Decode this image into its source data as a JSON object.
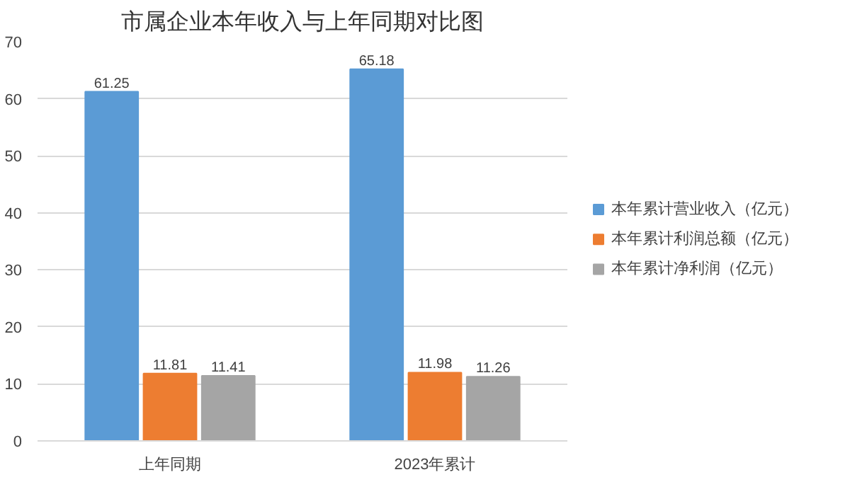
{
  "chart_data": {
    "type": "bar",
    "title": "市属企业本年收入与上年同期对比图",
    "categories": [
      "上年同期",
      "2023年累计"
    ],
    "series": [
      {
        "name": "本年累计营业收入（亿元）",
        "color": "#5b9bd5",
        "values": [
          61.25,
          65.18
        ]
      },
      {
        "name": "本年累计利润总额（亿元）",
        "color": "#ed7d31",
        "values": [
          11.81,
          11.98
        ]
      },
      {
        "name": "本年累计净利润（亿元）",
        "color": "#a5a5a5",
        "values": [
          11.41,
          11.26
        ]
      }
    ],
    "ylim": [
      0,
      70
    ],
    "yticks": [
      0,
      10,
      20,
      30,
      40,
      50,
      60,
      70
    ],
    "grid": "y",
    "legend": "right",
    "data_labels": true
  }
}
